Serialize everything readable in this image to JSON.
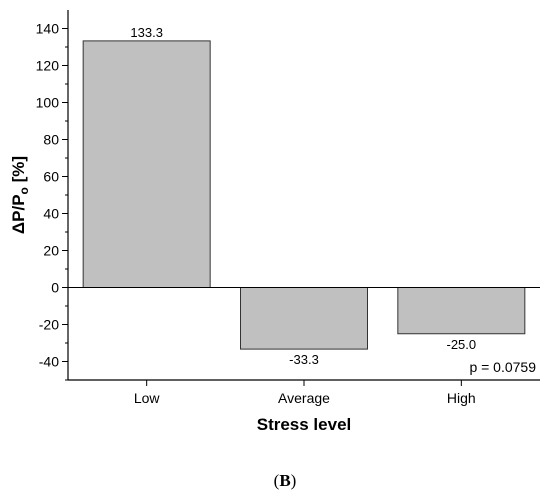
{
  "chart_data": {
    "type": "bar",
    "categories": [
      "Low",
      "Average",
      "High"
    ],
    "values": [
      133.3,
      -33.3,
      -25.0
    ],
    "data_labels": [
      "133.3",
      "-33.3",
      "-25.0"
    ],
    "xlabel": "Stress level",
    "ylabel": {
      "main": "ΔP/P",
      "subscript": "o",
      "unit": " [%]"
    },
    "ylim": [
      -50,
      150
    ],
    "yticks": [
      -40,
      -20,
      0,
      20,
      40,
      60,
      80,
      100,
      120,
      140
    ],
    "bar_color": "#c0c0c0",
    "bar_edge_color": "#333333",
    "annotation": "p = 0.0759",
    "grid": false
  },
  "caption": {
    "open": "(",
    "letter": "B",
    "close": ")"
  }
}
